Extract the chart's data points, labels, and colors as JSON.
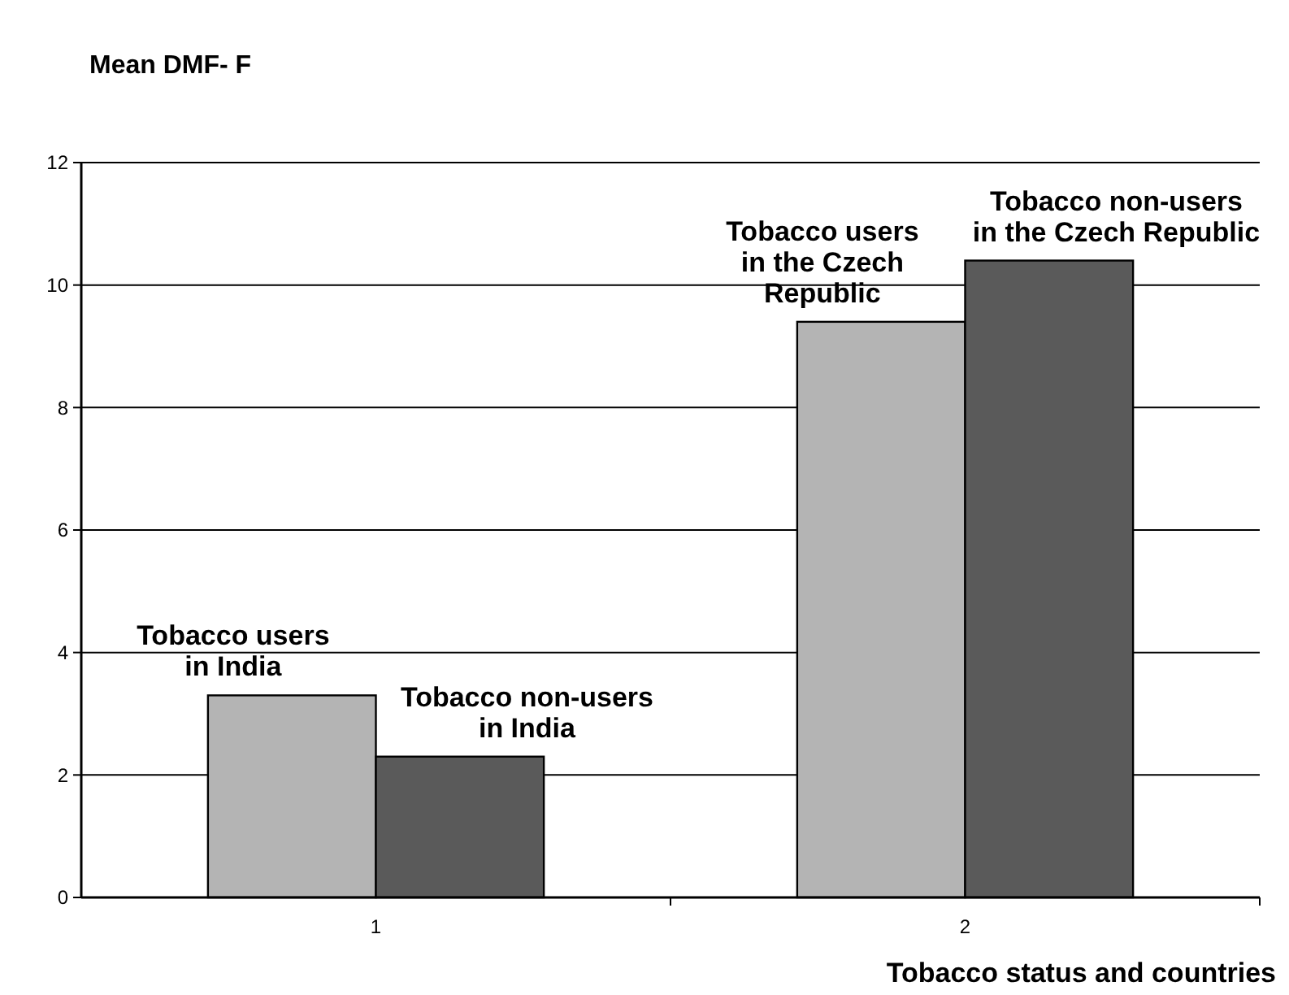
{
  "chart_data": {
    "type": "bar",
    "ylabel": "Mean DMF- F",
    "xlabel": "Tobacco status and countries",
    "categories": [
      "1",
      "2"
    ],
    "series": [
      {
        "color": "#b4b4b4",
        "values": [
          3.3,
          9.4
        ]
      },
      {
        "color": "#5a5a5a",
        "values": [
          2.3,
          10.4
        ]
      }
    ],
    "ylim": [
      0,
      12
    ],
    "yticks": [
      0,
      2,
      4,
      6,
      8,
      10,
      12
    ],
    "grid": "y",
    "annotations": [
      {
        "text": "Tobacco users\nin India",
        "x": "1",
        "y": 3.3
      },
      {
        "text": "Tobacco non-users\nin India",
        "x": "1",
        "y": 2.3
      },
      {
        "text": "Tobacco users\nin the Czech\nRepublic",
        "x": "2",
        "y": 9.4
      },
      {
        "text": "Tobacco non-users\nin the Czech Republic",
        "x": "2",
        "y": 10.4
      }
    ]
  }
}
